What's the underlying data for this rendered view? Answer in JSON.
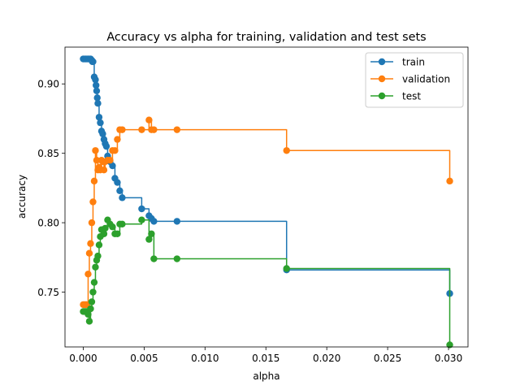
{
  "chart_data": {
    "type": "line",
    "step": "post",
    "title": "Accuracy vs alpha for training, validation and test sets",
    "xlabel": "alpha",
    "ylabel": "accuracy",
    "xlim": [
      -0.0015,
      0.0316
    ],
    "ylim": [
      0.7105,
      0.9265
    ],
    "xticks": [
      0.0,
      0.005,
      0.01,
      0.015,
      0.02,
      0.025,
      0.03
    ],
    "xtick_labels": [
      "0.000",
      "0.005",
      "0.010",
      "0.015",
      "0.020",
      "0.025",
      "0.030"
    ],
    "yticks": [
      0.75,
      0.8,
      0.85,
      0.9
    ],
    "ytick_labels": [
      "0.75",
      "0.80",
      "0.85",
      "0.90"
    ],
    "grid": false,
    "legend_position": "top-right",
    "series": [
      {
        "name": "train",
        "color": "#1f77b4",
        "x": [
          0,
          0.0001,
          0.0002,
          0.0003,
          0.0004,
          0.0005,
          0.0006,
          0.0007,
          0.00075,
          0.0008,
          0.0009,
          0.001,
          0.00105,
          0.0011,
          0.00115,
          0.0012,
          0.0013,
          0.0014,
          0.0015,
          0.0016,
          0.0017,
          0.0018,
          0.0019,
          0.002,
          0.0022,
          0.0024,
          0.0026,
          0.0028,
          0.003,
          0.0032,
          0.0048,
          0.0054,
          0.0056,
          0.0058,
          0.0077,
          0.0167,
          0.0301
        ],
        "y": [
          0.918,
          0.918,
          0.918,
          0.918,
          0.918,
          0.918,
          0.918,
          0.917,
          0.916,
          0.916,
          0.905,
          0.903,
          0.899,
          0.895,
          0.89,
          0.886,
          0.876,
          0.872,
          0.866,
          0.864,
          0.86,
          0.857,
          0.855,
          0.848,
          0.844,
          0.841,
          0.832,
          0.829,
          0.823,
          0.818,
          0.81,
          0.805,
          0.803,
          0.801,
          0.801,
          0.766,
          0.749
        ]
      },
      {
        "name": "validation",
        "color": "#ff7f0e",
        "x": [
          0,
          0.0001,
          0.0002,
          0.0003,
          0.0004,
          0.0005,
          0.0006,
          0.0007,
          0.0008,
          0.0009,
          0.001,
          0.0011,
          0.0012,
          0.0013,
          0.0014,
          0.0015,
          0.0016,
          0.0017,
          0.0018,
          0.002,
          0.0022,
          0.0024,
          0.0026,
          0.0028,
          0.003,
          0.0032,
          0.0048,
          0.0054,
          0.0056,
          0.0058,
          0.0077,
          0.0167,
          0.0301
        ],
        "y": [
          0.741,
          0.741,
          0.741,
          0.741,
          0.763,
          0.778,
          0.785,
          0.8,
          0.815,
          0.83,
          0.852,
          0.845,
          0.838,
          0.84,
          0.838,
          0.845,
          0.844,
          0.838,
          0.844,
          0.845,
          0.845,
          0.852,
          0.852,
          0.86,
          0.867,
          0.867,
          0.867,
          0.874,
          0.867,
          0.867,
          0.867,
          0.852,
          0.83
        ]
      },
      {
        "name": "test",
        "color": "#2ca02c",
        "x": [
          0,
          0.0001,
          0.0002,
          0.0003,
          0.0004,
          0.0005,
          0.0006,
          0.0007,
          0.0008,
          0.0009,
          0.001,
          0.0011,
          0.0012,
          0.0013,
          0.0014,
          0.0015,
          0.0016,
          0.0017,
          0.0018,
          0.002,
          0.0022,
          0.0024,
          0.0026,
          0.0028,
          0.003,
          0.0032,
          0.0048,
          0.0054,
          0.0056,
          0.0058,
          0.0077,
          0.0167,
          0.0301
        ],
        "y": [
          0.736,
          0.736,
          0.736,
          0.736,
          0.734,
          0.729,
          0.738,
          0.743,
          0.75,
          0.757,
          0.768,
          0.773,
          0.776,
          0.784,
          0.79,
          0.795,
          0.795,
          0.792,
          0.796,
          0.802,
          0.799,
          0.797,
          0.792,
          0.792,
          0.799,
          0.799,
          0.802,
          0.788,
          0.792,
          0.774,
          0.774,
          0.767,
          0.712
        ]
      }
    ]
  }
}
